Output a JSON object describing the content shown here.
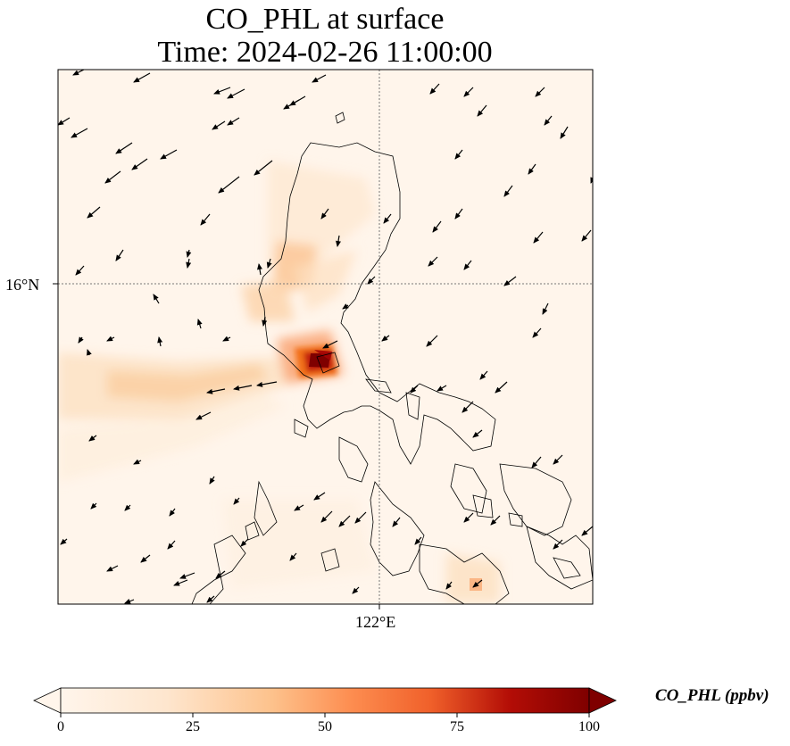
{
  "chart_data": {
    "type": "heatmap",
    "title": "CO_PHL at surface",
    "subtitle": "Time: 2024-02-26 11:00:00",
    "variable": "CO_PHL",
    "colorbar_label": "CO_PHL (ppbv)",
    "colorbar_ticks": [
      "0",
      "25",
      "50",
      "75",
      "100"
    ],
    "colorbar_range": [
      0,
      100
    ],
    "colorbar_extend": "both",
    "colormap": [
      "#fff5eb",
      "#fdd9b3",
      "#fdae6b",
      "#f16913",
      "#d94801",
      "#a40404",
      "#7f0000"
    ],
    "lat_ticks": [
      "16°N"
    ],
    "lon_ticks": [
      "122°E"
    ],
    "gridlines": "dotted",
    "vector_field": "wind arrows"
  }
}
